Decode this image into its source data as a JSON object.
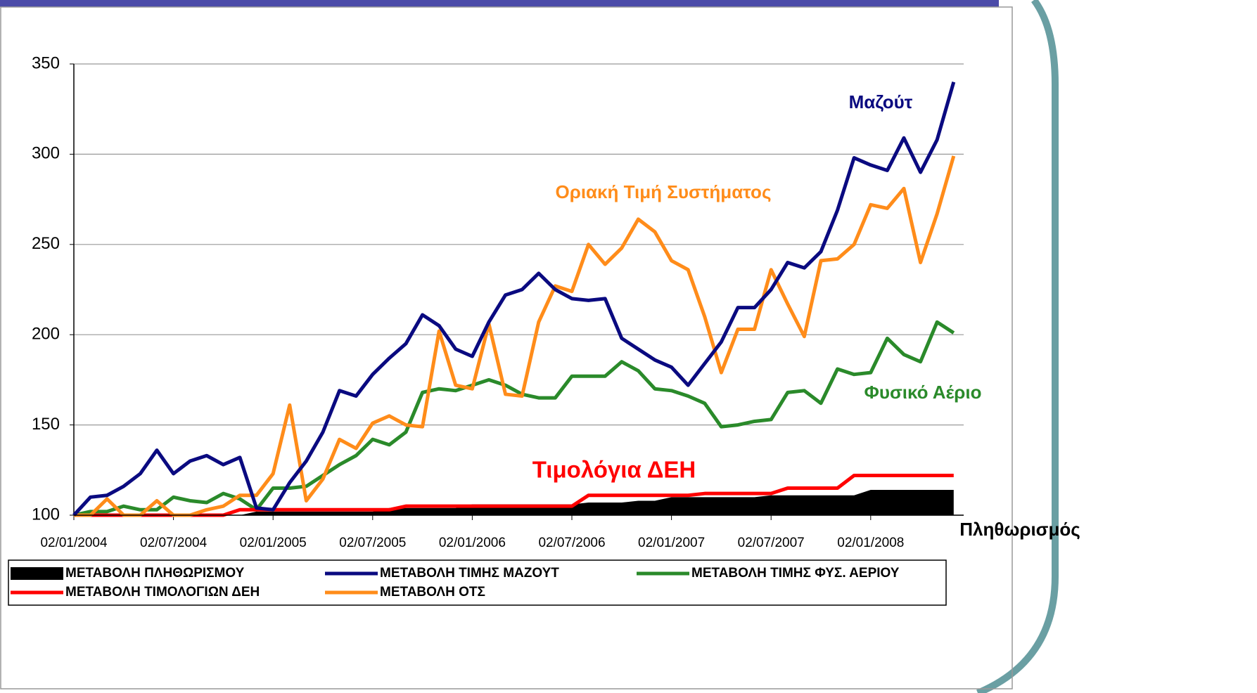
{
  "chart_data": {
    "type": "line",
    "categories": [
      "02/01/2004",
      null,
      null,
      null,
      null,
      null,
      "02/07/2004",
      null,
      null,
      null,
      null,
      null,
      "02/01/2005",
      null,
      null,
      null,
      null,
      null,
      "02/07/2005",
      null,
      null,
      null,
      null,
      null,
      "02/01/2006",
      null,
      null,
      null,
      null,
      null,
      "02/07/2006",
      null,
      null,
      null,
      null,
      null,
      "02/01/2007",
      null,
      null,
      null,
      null,
      null,
      "02/07/2007",
      null,
      null,
      null,
      null,
      null,
      "02/01/2008",
      null,
      null,
      null,
      null,
      null
    ],
    "ylim": [
      100,
      350
    ],
    "yticks": [
      100,
      150,
      200,
      250,
      300,
      350
    ],
    "grid": true,
    "legend": "bottom",
    "series": [
      {
        "name": "ΜΕΤΑΒΟΛΗ ΠΛΗΘΩΡΙΣΜΟΥ",
        "annotation": "Πληθωρισμός",
        "color": "#000000",
        "style": "area",
        "values": [
          100,
          100,
          100,
          100,
          100,
          100,
          100,
          100,
          100,
          100,
          100,
          102,
          102,
          102,
          102,
          102,
          102,
          102,
          102,
          104,
          104,
          104,
          104,
          104,
          106,
          106,
          106,
          106,
          106,
          106,
          106,
          107,
          107,
          107,
          108,
          108,
          110,
          110,
          110,
          110,
          110,
          110,
          111,
          111,
          111,
          111,
          111,
          111,
          114,
          114,
          114,
          114,
          114,
          114
        ]
      },
      {
        "name": "ΜΕΤΑΒΟΛΗ ΤΙΜΗΣ ΜΑΖΟΥΤ",
        "annotation": "Μαζούτ",
        "color": "#0a0a80",
        "style": "line",
        "values": [
          100,
          110,
          111,
          116,
          123,
          136,
          123,
          130,
          133,
          128,
          132,
          104,
          103,
          118,
          130,
          146,
          169,
          166,
          178,
          187,
          195,
          211,
          205,
          192,
          188,
          207,
          222,
          225,
          234,
          225,
          220,
          219,
          220,
          198,
          192,
          186,
          182,
          172,
          184,
          196,
          215,
          215,
          225,
          240,
          237,
          246,
          269,
          298,
          294,
          291,
          309,
          290,
          308,
          340
        ]
      },
      {
        "name": "ΜΕΤΑΒΟΛΗ ΤΙΜΗΣ ΦΥΣ. ΑΕΡΙΟΥ",
        "annotation": "Φυσικό Αέριο",
        "color": "#2a8a2a",
        "style": "line",
        "values": [
          100,
          102,
          102,
          105,
          103,
          103,
          110,
          108,
          107,
          112,
          109,
          103,
          115,
          115,
          116,
          122,
          128,
          133,
          142,
          139,
          146,
          168,
          170,
          169,
          172,
          175,
          172,
          167,
          165,
          165,
          177,
          177,
          177,
          185,
          180,
          170,
          169,
          166,
          162,
          149,
          150,
          152,
          153,
          168,
          169,
          162,
          181,
          178,
          179,
          198,
          189,
          185,
          207,
          201
        ]
      },
      {
        "name": "ΜΕΤΑΒΟΛΗ ΤΙΜΟΛΟΓΙΩΝ ΔΕΗ",
        "annotation": "Τιμολόγια ΔΕΗ",
        "color": "#ff0000",
        "style": "line",
        "values": [
          100,
          100,
          100,
          100,
          100,
          100,
          100,
          100,
          100,
          100,
          103,
          103,
          103,
          103,
          103,
          103,
          103,
          103,
          103,
          103,
          105,
          105,
          105,
          105,
          105,
          105,
          105,
          105,
          105,
          105,
          105,
          111,
          111,
          111,
          111,
          111,
          111,
          111,
          112,
          112,
          112,
          112,
          112,
          115,
          115,
          115,
          115,
          122,
          122,
          122,
          122,
          122,
          122,
          122
        ]
      },
      {
        "name": "ΜΕΤΑΒΟΛΗ ΟΤΣ",
        "annotation": "Οριακή Τιμή Συστήματος",
        "color": "#ff8c1a",
        "style": "line",
        "values": [
          100,
          100,
          109,
          100,
          100,
          108,
          100,
          100,
          103,
          105,
          111,
          111,
          123,
          161,
          108,
          120,
          142,
          137,
          151,
          155,
          150,
          149,
          202,
          172,
          170,
          206,
          167,
          166,
          207,
          227,
          224,
          250,
          239,
          248,
          264,
          257,
          241,
          236,
          210,
          179,
          203,
          203,
          236,
          217,
          199,
          241,
          242,
          250,
          272,
          270,
          281,
          240,
          267,
          299
        ]
      }
    ]
  }
}
